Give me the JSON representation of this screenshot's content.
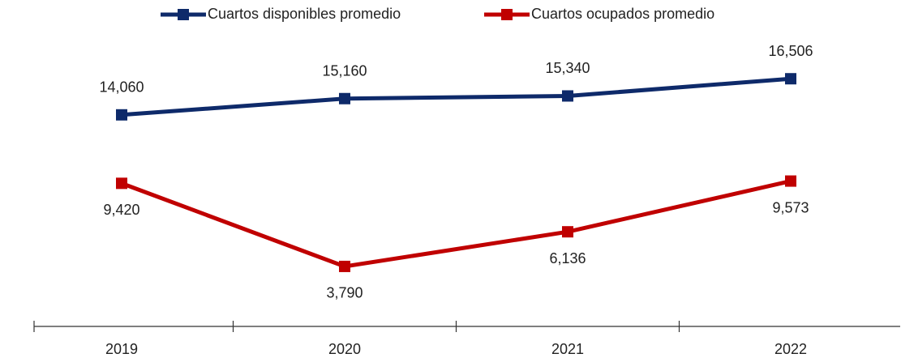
{
  "chart_data": {
    "type": "line",
    "categories": [
      "2019",
      "2020",
      "2021",
      "2022"
    ],
    "series": [
      {
        "name": "Cuartos disponibles promedio",
        "color": "#0e2a6a",
        "values": [
          14060,
          15160,
          15340,
          16506
        ],
        "value_labels": [
          "14,060",
          "15,160",
          "15,340",
          "16,506"
        ]
      },
      {
        "name": "Cuartos ocupados promedio",
        "color": "#c00000",
        "values": [
          9420,
          3790,
          6136,
          9573
        ],
        "value_labels": [
          "9,420",
          "3,790",
          "6,136",
          "9,573"
        ]
      }
    ],
    "ylim": [
      0,
      18000
    ],
    "legend": "top"
  }
}
